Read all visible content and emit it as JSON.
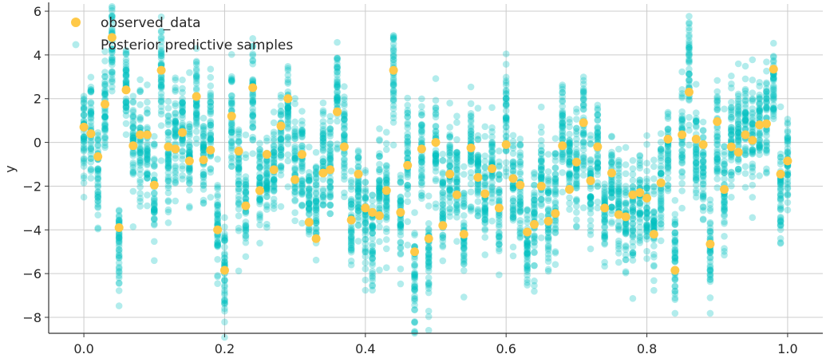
{
  "chart_data": {
    "type": "scatter",
    "title": "",
    "xlabel": "",
    "ylabel": "y",
    "xlim": [
      -0.05,
      1.05
    ],
    "ylim": [
      -8.73,
      6.33
    ],
    "x_ticks": [
      "0.0",
      "0.2",
      "0.4",
      "0.6",
      "0.8",
      "1.0"
    ],
    "y_ticks": [
      "−8",
      "−6",
      "−4",
      "−2",
      "0",
      "2",
      "4",
      "6"
    ],
    "grid": true,
    "legend_position": "top-left",
    "legend": [
      "observed_data",
      "Posterior predictive samples"
    ],
    "colors": {
      "observed": "#ffc947",
      "posterior": "#00bfbf",
      "grid": "#cccccc",
      "axis": "#333333"
    },
    "series": [
      {
        "name": "observed_data",
        "x_start": 0.0,
        "x_step": 0.01,
        "y": [
          0.7,
          0.4,
          -0.65,
          1.75,
          4.8,
          -3.9,
          2.4,
          -0.15,
          0.35,
          0.35,
          -1.95,
          3.3,
          -0.2,
          -0.3,
          0.45,
          -0.85,
          2.1,
          -0.8,
          -0.35,
          -4.0,
          -5.85,
          1.2,
          -0.4,
          -2.9,
          2.5,
          -2.2,
          -0.55,
          -1.25,
          0.75,
          2.0,
          -1.7,
          -0.55,
          -3.65,
          -4.4,
          -1.4,
          -1.25,
          1.4,
          -0.2,
          -3.55,
          -1.45,
          -3.0,
          -3.2,
          -3.35,
          -2.2,
          3.3,
          -3.2,
          -1.05,
          -5.0,
          -0.3,
          -4.4,
          0.0,
          -3.8,
          -1.45,
          -2.4,
          -4.2,
          -0.25,
          -1.6,
          -2.35,
          -1.2,
          -3.0,
          -0.1,
          -1.65,
          -1.95,
          -4.1,
          -3.75,
          -2.0,
          -3.6,
          -3.25,
          -0.15,
          -2.15,
          -0.9,
          0.9,
          -1.75,
          -0.2,
          -3.0,
          -1.4,
          -3.3,
          -3.4,
          -2.4,
          -2.3,
          -2.55,
          -4.2,
          -1.85,
          0.15,
          -5.85,
          0.35,
          2.3,
          0.15,
          -0.1,
          -4.65,
          0.95,
          -2.15,
          -0.2,
          -0.45,
          0.35,
          0.1,
          0.8,
          0.85,
          3.35,
          -1.45,
          -0.85
        ]
      },
      {
        "name": "Posterior predictive samples"
      }
    ]
  }
}
